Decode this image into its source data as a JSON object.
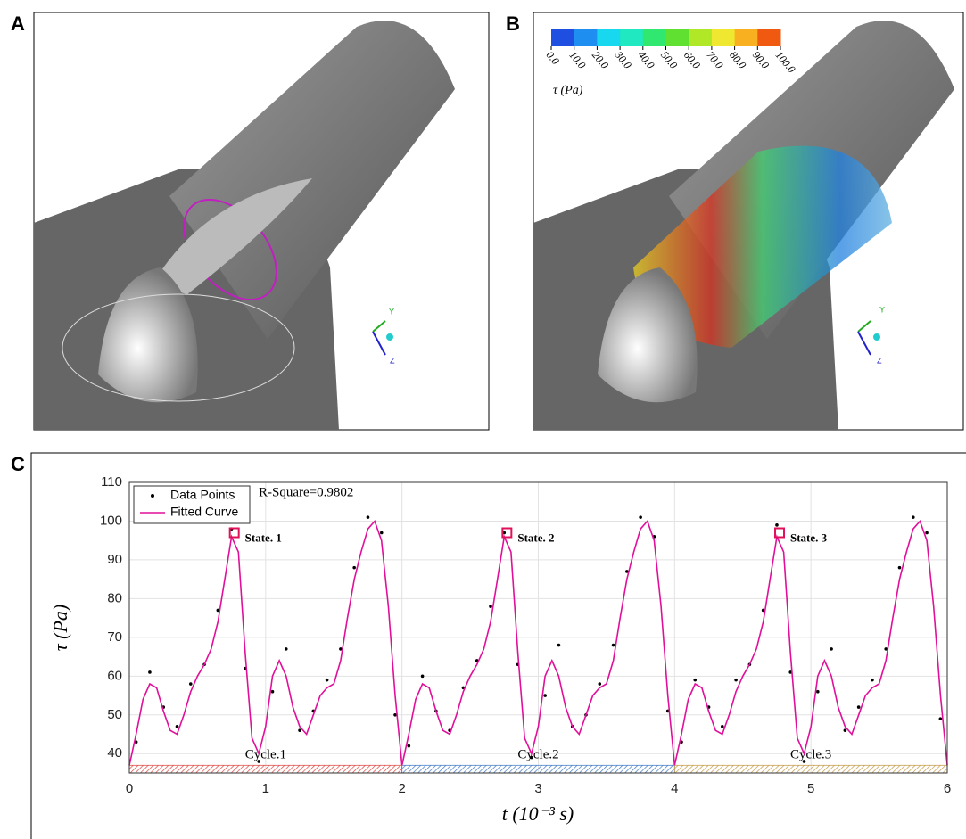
{
  "panels": {
    "labels": [
      "A",
      "B",
      "C"
    ],
    "triad": [
      "Y",
      "Z"
    ]
  },
  "colorbar": {
    "title": "τ (Pa)",
    "ticks": [
      {
        "value": 0,
        "label": "0.0"
      },
      {
        "value": 10,
        "label": "10.0"
      },
      {
        "value": 20,
        "label": "20.0"
      },
      {
        "value": 30,
        "label": "30.0"
      },
      {
        "value": 40,
        "label": "40.0"
      },
      {
        "value": 50,
        "label": "50.0"
      },
      {
        "value": 60,
        "label": "60.0"
      },
      {
        "value": 70,
        "label": "70.0"
      },
      {
        "value": 80,
        "label": "80.0"
      },
      {
        "value": 90,
        "label": "90.0"
      },
      {
        "value": 100,
        "label": "100.0"
      }
    ],
    "colors": [
      "#1f4fe0",
      "#1e8ef0",
      "#18d8f0",
      "#20e8c0",
      "#30e870",
      "#60e030",
      "#b0e828",
      "#f0e830",
      "#f8b020",
      "#f05a10"
    ]
  },
  "chart_data": {
    "type": "line",
    "x_label": "t (10⁻³ s)",
    "y_label": "τ (Pa)",
    "xlim": [
      0,
      6
    ],
    "xticks": [
      0,
      1,
      2,
      3,
      4,
      5,
      6
    ],
    "ylim": [
      35,
      110
    ],
    "yticks": [
      40,
      50,
      60,
      70,
      80,
      90,
      100,
      110
    ],
    "grid": true,
    "legend": "upper left",
    "annotation": "R-Square=0.9802",
    "states": [
      {
        "x": 0.77,
        "y": 97,
        "label": "State. 1"
      },
      {
        "x": 2.77,
        "y": 97,
        "label": "State. 2"
      },
      {
        "x": 4.77,
        "y": 97,
        "label": "State. 3"
      }
    ],
    "cycles": [
      {
        "label": "Cycle.1",
        "start": 0,
        "end": 2,
        "color": "#e0504a"
      },
      {
        "label": "Cycle.2",
        "start": 2,
        "end": 4,
        "color": "#4a80c8"
      },
      {
        "label": "Cycle.3",
        "start": 4,
        "end": 6,
        "color": "#c8a050"
      }
    ],
    "series": [
      {
        "name": "Data Points",
        "style": "markers",
        "color": "#000000",
        "x": [
          0.05,
          0.15,
          0.25,
          0.35,
          0.45,
          0.55,
          0.65,
          0.75,
          0.85,
          0.95,
          1.05,
          1.15,
          1.25,
          1.35,
          1.45,
          1.55,
          1.65,
          1.75,
          1.85,
          1.95,
          2.05,
          2.15,
          2.25,
          2.35,
          2.45,
          2.55,
          2.65,
          2.75,
          2.85,
          2.95,
          3.05,
          3.15,
          3.25,
          3.35,
          3.45,
          3.55,
          3.65,
          3.75,
          3.85,
          3.95,
          4.05,
          4.15,
          4.25,
          4.35,
          4.45,
          4.55,
          4.65,
          4.75,
          4.85,
          4.95,
          5.05,
          5.15,
          5.25,
          5.35,
          5.45,
          5.55,
          5.65,
          5.75,
          5.85,
          5.95
        ],
        "values": [
          43,
          61,
          52,
          47,
          58,
          63,
          77,
          98,
          62,
          38,
          56,
          67,
          46,
          51,
          59,
          67,
          88,
          101,
          97,
          50,
          42,
          60,
          51,
          46,
          57,
          64,
          78,
          97,
          63,
          39,
          55,
          68,
          47,
          50,
          58,
          68,
          87,
          101,
          96,
          51,
          43,
          59,
          52,
          47,
          59,
          63,
          77,
          99,
          61,
          38,
          56,
          67,
          46,
          52,
          59,
          67,
          88,
          101,
          97,
          49
        ]
      },
      {
        "name": "Fitted Curve",
        "style": "line",
        "color": "#e0109a",
        "x": [
          0,
          0.05,
          0.1,
          0.15,
          0.2,
          0.25,
          0.3,
          0.35,
          0.4,
          0.45,
          0.5,
          0.55,
          0.6,
          0.65,
          0.7,
          0.75,
          0.8,
          0.85,
          0.9,
          0.95,
          1,
          1.05,
          1.1,
          1.15,
          1.2,
          1.25,
          1.3,
          1.35,
          1.4,
          1.45,
          1.5,
          1.55,
          1.6,
          1.65,
          1.7,
          1.75,
          1.8,
          1.85,
          1.9,
          1.95,
          2,
          2.05,
          2.1,
          2.15,
          2.2,
          2.25,
          2.3,
          2.35,
          2.4,
          2.45,
          2.5,
          2.55,
          2.6,
          2.65,
          2.7,
          2.75,
          2.8,
          2.85,
          2.9,
          2.95,
          3,
          3.05,
          3.1,
          3.15,
          3.2,
          3.25,
          3.3,
          3.35,
          3.4,
          3.45,
          3.5,
          3.55,
          3.6,
          3.65,
          3.7,
          3.75,
          3.8,
          3.85,
          3.9,
          3.95,
          4,
          4.05,
          4.1,
          4.15,
          4.2,
          4.25,
          4.3,
          4.35,
          4.4,
          4.45,
          4.5,
          4.55,
          4.6,
          4.65,
          4.7,
          4.75,
          4.8,
          4.85,
          4.9,
          4.95,
          5,
          5.05,
          5.1,
          5.15,
          5.2,
          5.25,
          5.3,
          5.35,
          5.4,
          5.45,
          5.5,
          5.55,
          5.6,
          5.65,
          5.7,
          5.75,
          5.8,
          5.85,
          5.9,
          5.95,
          6
        ],
        "values": [
          37,
          45,
          54,
          58,
          57,
          51,
          46,
          45,
          50,
          56,
          60,
          63,
          67,
          74,
          85,
          96,
          92,
          66,
          44,
          40,
          47,
          60,
          64,
          60,
          52,
          47,
          45,
          50,
          55,
          57,
          58,
          64,
          75,
          85,
          92,
          98,
          100,
          95,
          78,
          55,
          37,
          45,
          54,
          58,
          57,
          51,
          46,
          45,
          50,
          56,
          60,
          63,
          67,
          74,
          85,
          96,
          92,
          66,
          44,
          40,
          47,
          60,
          64,
          60,
          52,
          47,
          45,
          50,
          55,
          57,
          58,
          64,
          75,
          85,
          92,
          98,
          100,
          95,
          78,
          55,
          37,
          45,
          54,
          58,
          57,
          51,
          46,
          45,
          50,
          56,
          60,
          63,
          67,
          74,
          85,
          96,
          92,
          66,
          44,
          40,
          47,
          60,
          64,
          60,
          52,
          47,
          45,
          50,
          55,
          57,
          58,
          64,
          75,
          85,
          92,
          98,
          100,
          95,
          78,
          55,
          37
        ]
      }
    ]
  }
}
